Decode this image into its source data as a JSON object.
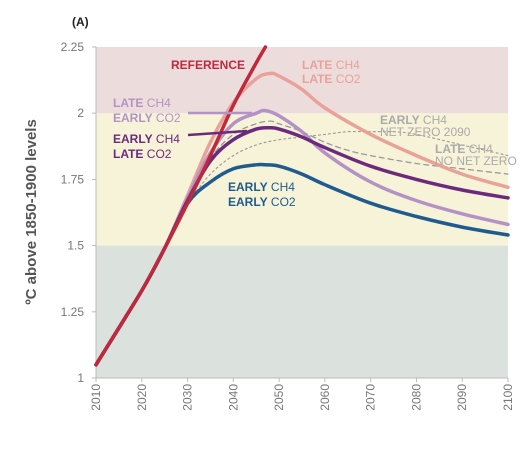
{
  "chart_data": {
    "type": "line",
    "panel_label": "(A)",
    "ylabel": "ºC above 1850-1900 levels",
    "xlim": [
      2010,
      2100
    ],
    "ylim": [
      1,
      2.25
    ],
    "x_ticks": [
      2010,
      2020,
      2030,
      2040,
      2050,
      2060,
      2070,
      2080,
      2090,
      2100
    ],
    "y_ticks": [
      1,
      1.25,
      1.5,
      1.75,
      2,
      2.25
    ],
    "y_tick_labels": [
      "1",
      "1.25",
      "1.5",
      "1.75",
      "2",
      "2.25"
    ],
    "grid": false,
    "bands": [
      {
        "from": 1,
        "to": 1.5,
        "color": "#dbe1dc"
      },
      {
        "from": 1.5,
        "to": 2,
        "color": "#f6f3d8"
      },
      {
        "from": 2,
        "to": 2.25,
        "color": "#eddcdc"
      }
    ],
    "series": [
      {
        "id": "reference",
        "color": "#c0283c",
        "width": 3.5,
        "dash": "",
        "label": [
          {
            "bold": "REFERENCE",
            "rest": ""
          }
        ],
        "x": [
          2010,
          2015,
          2020,
          2025,
          2030,
          2035,
          2040,
          2045,
          2047
        ],
        "y": [
          1.05,
          1.19,
          1.33,
          1.49,
          1.66,
          1.84,
          2.03,
          2.19,
          2.25
        ]
      },
      {
        "id": "late-ch4-late-co2",
        "color": "#e9a29a",
        "width": 3.5,
        "dash": "",
        "label": [
          {
            "bold": "LATE",
            "rest": " CH4"
          },
          {
            "bold": "LATE",
            "rest": " CO2"
          }
        ],
        "x": [
          2010,
          2020,
          2025,
          2030,
          2035,
          2040,
          2045,
          2048,
          2050,
          2055,
          2060,
          2070,
          2080,
          2090,
          2100
        ],
        "y": [
          1.05,
          1.33,
          1.49,
          1.69,
          1.89,
          2.04,
          2.13,
          2.15,
          2.14,
          2.09,
          2.02,
          1.92,
          1.84,
          1.77,
          1.72
        ]
      },
      {
        "id": "late-ch4-early-co2",
        "color": "#b393c6",
        "width": 3.5,
        "dash": "",
        "label": [
          {
            "bold": "LATE",
            "rest": " CH4"
          },
          {
            "bold": "EARLY",
            "rest": " CO2"
          }
        ],
        "x": [
          2010,
          2020,
          2025,
          2030,
          2035,
          2040,
          2045,
          2047,
          2050,
          2055,
          2060,
          2070,
          2080,
          2090,
          2100
        ],
        "y": [
          1.05,
          1.33,
          1.49,
          1.68,
          1.85,
          1.96,
          2.0,
          2.01,
          1.99,
          1.93,
          1.85,
          1.74,
          1.67,
          1.62,
          1.58
        ]
      },
      {
        "id": "early-ch4-net-zero-2090",
        "color": "#999999",
        "width": 1.3,
        "dash": "5,4",
        "label": [
          {
            "bold": "EARLY",
            "rest": " CH4"
          },
          {
            "bold": "",
            "rest": "NET ZERO 2090"
          }
        ],
        "x": [
          2030,
          2035,
          2040,
          2045,
          2048,
          2050,
          2055,
          2060,
          2065,
          2070,
          2080,
          2090,
          2100
        ],
        "y": [
          1.68,
          1.83,
          1.92,
          1.96,
          1.97,
          1.96,
          1.93,
          1.89,
          1.86,
          1.84,
          1.81,
          1.79,
          1.77
        ]
      },
      {
        "id": "late-ch4-no-net-zero",
        "color": "#999999",
        "width": 1.1,
        "dash": "2,3",
        "label": [
          {
            "bold": "LATE",
            "rest": " CH4"
          },
          {
            "bold": "",
            "rest": "NO NET ZERO"
          }
        ],
        "x": [
          2030,
          2035,
          2040,
          2045,
          2050,
          2055,
          2060,
          2065,
          2070,
          2075,
          2080,
          2090,
          2100
        ],
        "y": [
          1.66,
          1.77,
          1.84,
          1.88,
          1.9,
          1.91,
          1.92,
          1.93,
          1.93,
          1.93,
          1.92,
          1.88,
          1.84
        ]
      },
      {
        "id": "early-ch4-late-co2",
        "color": "#6c2a7c",
        "width": 3.5,
        "dash": "",
        "label": [
          {
            "bold": "EARLY",
            "rest": " CH4"
          },
          {
            "bold": "LATE",
            "rest": " CO2"
          }
        ],
        "x": [
          2010,
          2020,
          2025,
          2030,
          2035,
          2040,
          2045,
          2048,
          2050,
          2055,
          2060,
          2070,
          2080,
          2090,
          2100
        ],
        "y": [
          1.05,
          1.33,
          1.49,
          1.67,
          1.82,
          1.9,
          1.94,
          1.945,
          1.94,
          1.91,
          1.87,
          1.8,
          1.75,
          1.71,
          1.68
        ]
      },
      {
        "id": "early-ch4-early-co2",
        "color": "#1f5b8e",
        "width": 3.5,
        "dash": "",
        "label": [
          {
            "bold": "EARLY",
            "rest": " CH4"
          },
          {
            "bold": "EARLY",
            "rest": " CO2"
          }
        ],
        "x": [
          2010,
          2020,
          2025,
          2030,
          2035,
          2040,
          2045,
          2047,
          2050,
          2055,
          2060,
          2070,
          2080,
          2090,
          2100
        ],
        "y": [
          1.05,
          1.33,
          1.49,
          1.66,
          1.74,
          1.79,
          1.805,
          1.805,
          1.8,
          1.77,
          1.73,
          1.66,
          1.61,
          1.57,
          1.54
        ]
      }
    ]
  }
}
